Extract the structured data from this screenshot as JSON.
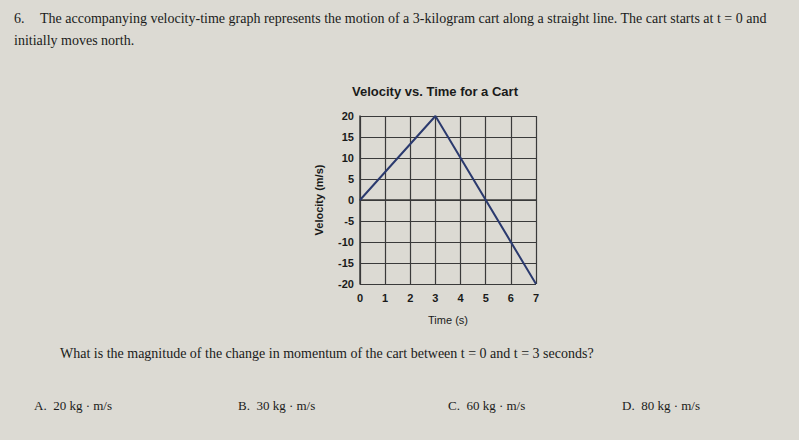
{
  "document": {
    "number": "6.",
    "intro": "The accompanying velocity-time graph represents the motion of a 3-kilogram cart along a straight line. The cart starts at t = 0 and initially moves north.",
    "question": "What is the magnitude of the change in momentum of the cart between t = 0 and t = 3 seconds?",
    "options": [
      {
        "letter": "A.",
        "text": "20 kg · m/s"
      },
      {
        "letter": "B.",
        "text": "30 kg · m/s"
      },
      {
        "letter": "C.",
        "text": "60 kg · m/s"
      },
      {
        "letter": "D.",
        "text": "80 kg · m/s"
      }
    ]
  },
  "chart_data": {
    "type": "line",
    "title": "Velocity vs. Time for a Cart",
    "x_label": "Time (s)",
    "y_label": "Velocity (m/s)",
    "x": [
      0,
      3,
      7
    ],
    "values": [
      0,
      20,
      -20
    ],
    "color": "#2b3a6e",
    "xlim": [
      0,
      7
    ],
    "xticks": [
      0,
      1,
      2,
      3,
      4,
      5,
      6,
      7
    ],
    "ylim": [
      -20,
      20
    ],
    "yticks": [
      -20,
      -15,
      -10,
      -5,
      0,
      5,
      10,
      15,
      20
    ],
    "grid": true
  }
}
